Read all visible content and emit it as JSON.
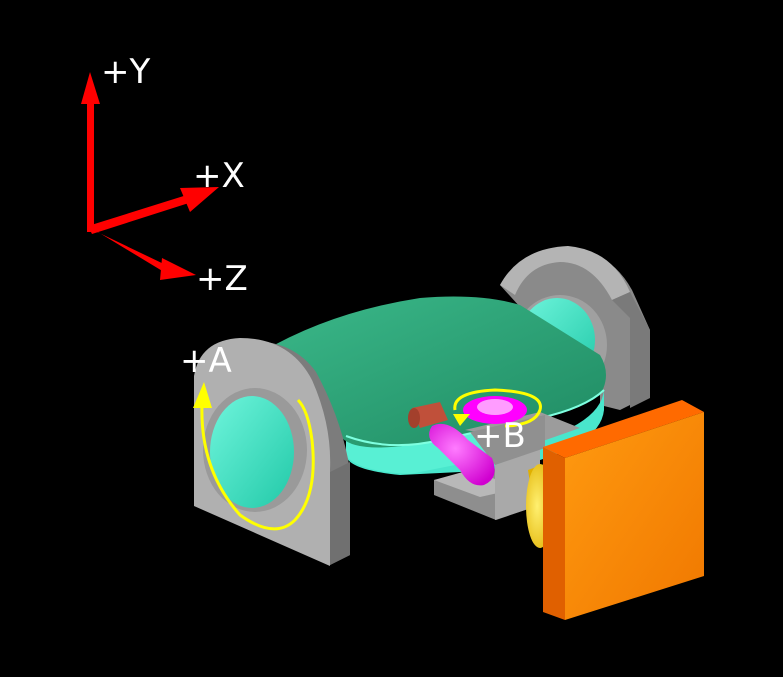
{
  "axes": {
    "y_label": "+Y",
    "x_label": "+X",
    "z_label": "+Z"
  },
  "rotations": {
    "a_label": "+A",
    "b_label": "+B"
  },
  "colors": {
    "background": "#000000",
    "axis_arrows": "#ff0000",
    "labels": "#ffffff",
    "table": "#2ea878",
    "table_edge": "#7effe0",
    "trunnion_gray": "#a8a8a8",
    "disc": "#3de8c8",
    "spindle_magenta": "#ff00ff",
    "rotation_arrow": "#ffff00",
    "tool": "#c0503a",
    "motor_orange": "#ff8c00"
  }
}
